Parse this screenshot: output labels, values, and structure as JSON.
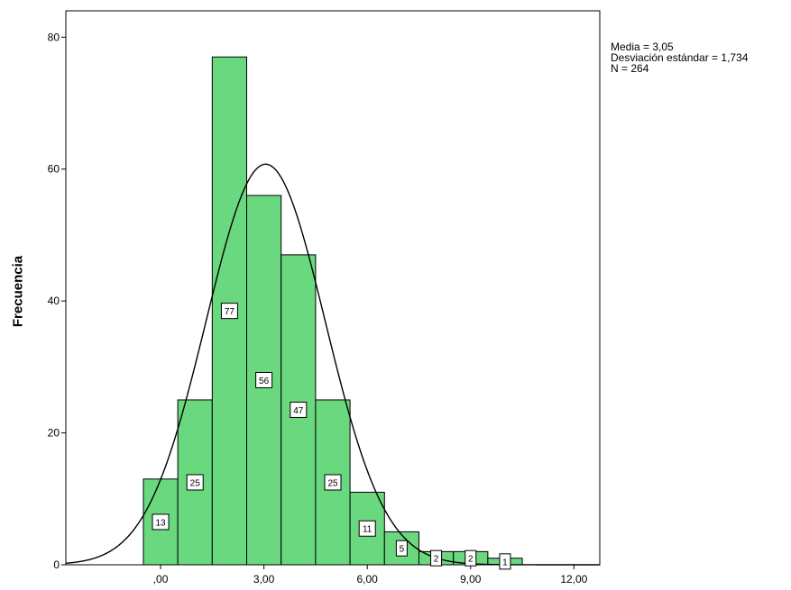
{
  "chart_data": {
    "type": "bar",
    "title": "",
    "xlabel": "",
    "ylabel": "Frecuencia",
    "xlim": [
      -2.75,
      12.75
    ],
    "ylim": [
      0,
      84
    ],
    "x_ticks": [
      {
        "value": 0,
        "label": ",00"
      },
      {
        "value": 3,
        "label": "3,00"
      },
      {
        "value": 6,
        "label": "6,00"
      },
      {
        "value": 9,
        "label": "9,00"
      },
      {
        "value": 12,
        "label": "12,00"
      }
    ],
    "y_ticks": [
      {
        "value": 0,
        "label": "0"
      },
      {
        "value": 20,
        "label": "20"
      },
      {
        "value": 40,
        "label": "40"
      },
      {
        "value": 60,
        "label": "60"
      },
      {
        "value": 80,
        "label": "80"
      }
    ],
    "bins": [
      {
        "center": 0,
        "count": 13
      },
      {
        "center": 1,
        "count": 25
      },
      {
        "center": 2,
        "count": 77
      },
      {
        "center": 3,
        "count": 56
      },
      {
        "center": 4,
        "count": 47
      },
      {
        "center": 5,
        "count": 25
      },
      {
        "center": 6,
        "count": 11
      },
      {
        "center": 7,
        "count": 5
      },
      {
        "center": 8,
        "count": 2
      },
      {
        "center": 9,
        "count": 2
      },
      {
        "center": 10,
        "count": 1
      }
    ],
    "bin_width": 1,
    "normal_curve": {
      "mean": 3.05,
      "sd": 1.734,
      "n": 264
    },
    "bar_color": "#6ad87e",
    "stats_text": [
      "Media = 3,05",
      "Desviación estándar = 1,734",
      "N = 264"
    ],
    "grid": false
  }
}
